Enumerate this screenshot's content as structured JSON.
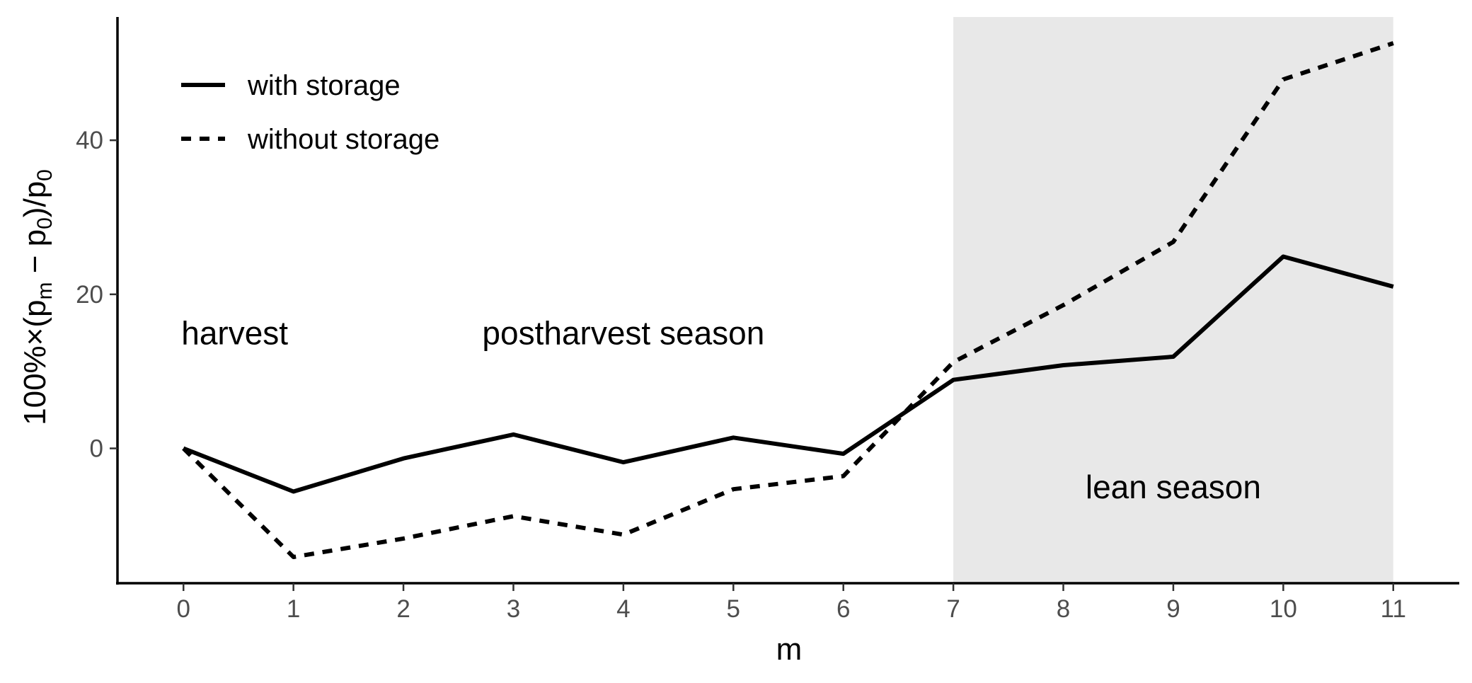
{
  "chart_data": {
    "type": "line",
    "x": [
      0,
      1,
      2,
      3,
      4,
      5,
      6,
      7,
      8,
      9,
      10,
      11
    ],
    "x_ticks": [
      "0",
      "1",
      "2",
      "3",
      "4",
      "5",
      "6",
      "7",
      "8",
      "9",
      "10",
      "11"
    ],
    "y_ticks": [
      "0",
      "20",
      "40"
    ],
    "y_tick_values": [
      0,
      20,
      40
    ],
    "xlim": [
      -0.6,
      11.6
    ],
    "ylim": [
      -17.5,
      56
    ],
    "xlabel": "m",
    "ylabel_parts": {
      "prefix": "100%×(p",
      "sub_m": "m",
      "middle": " − p",
      "sub_0a": "0",
      "close": ")/p",
      "sub_0b": "0"
    },
    "series": [
      {
        "name": "with storage",
        "style": "solid",
        "values": [
          0,
          -5.6,
          -1.3,
          1.8,
          -1.8,
          1.4,
          -0.7,
          8.9,
          10.8,
          11.9,
          24.9,
          21.0
        ]
      },
      {
        "name": "without storage",
        "style": "dashed",
        "values": [
          0,
          -14.1,
          -11.7,
          -8.8,
          -11.2,
          -5.3,
          -3.6,
          11.2,
          18.6,
          26.8,
          47.9,
          52.6
        ]
      }
    ],
    "shaded_region": {
      "x_start": 7,
      "x_end": 11,
      "color": "#e8e8e8"
    },
    "annotations": [
      {
        "text": "harvest",
        "x": 0,
        "y": 15
      },
      {
        "text": "postharvest season",
        "x": 4,
        "y": 15
      },
      {
        "text": "lean season",
        "x": 9,
        "y": -5
      }
    ],
    "legend_position": "top-left",
    "grid": false,
    "line_color": "#000000",
    "axis_color": "#000000",
    "tick_label_color": "#4d4d4d"
  }
}
